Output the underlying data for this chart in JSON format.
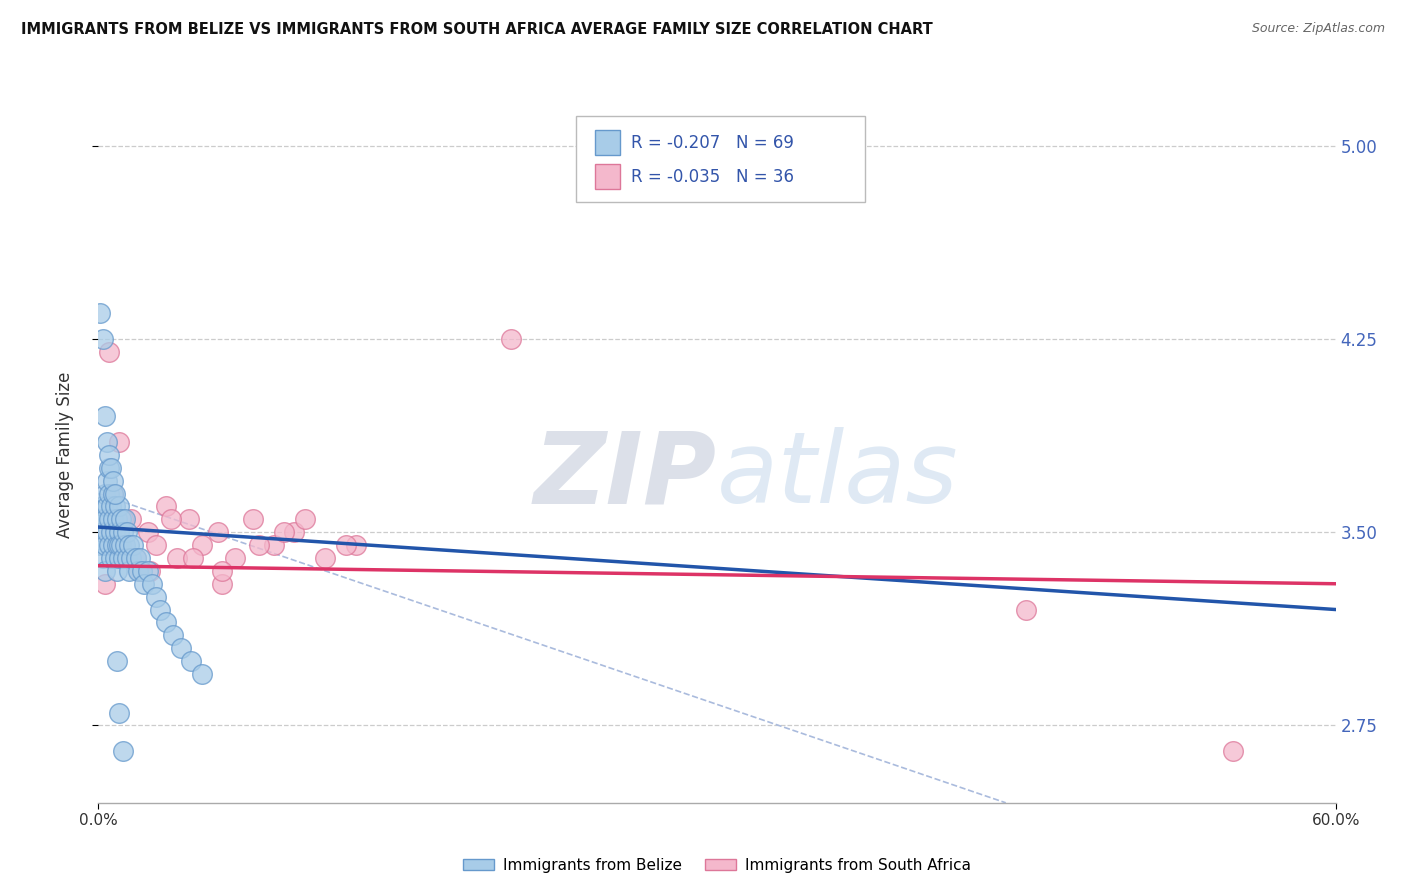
{
  "title": "IMMIGRANTS FROM BELIZE VS IMMIGRANTS FROM SOUTH AFRICA AVERAGE FAMILY SIZE CORRELATION CHART",
  "source_text": "Source: ZipAtlas.com",
  "ylabel": "Average Family Size",
  "xlim": [
    0.0,
    0.6
  ],
  "ylim": [
    2.45,
    5.15
  ],
  "yticks": [
    2.75,
    3.5,
    4.25,
    5.0
  ],
  "xticks": [
    0.0,
    0.6
  ],
  "xtick_labels": [
    "0.0%",
    "60.0%"
  ],
  "belize_color": "#a8cce8",
  "belize_edge": "#6699cc",
  "sa_color": "#f4b8cc",
  "sa_edge": "#dd7799",
  "trend_belize_color": "#2255aa",
  "trend_sa_color": "#dd3366",
  "R_belize": -0.207,
  "N_belize": 69,
  "R_sa": -0.035,
  "N_sa": 36,
  "watermark_zip": "ZIP",
  "watermark_atlas": "atlas",
  "belize_x": [
    0.001,
    0.001,
    0.002,
    0.002,
    0.002,
    0.003,
    0.003,
    0.003,
    0.003,
    0.004,
    0.004,
    0.004,
    0.005,
    0.005,
    0.005,
    0.005,
    0.006,
    0.006,
    0.006,
    0.007,
    0.007,
    0.007,
    0.008,
    0.008,
    0.008,
    0.009,
    0.009,
    0.009,
    0.01,
    0.01,
    0.01,
    0.01,
    0.011,
    0.011,
    0.012,
    0.012,
    0.013,
    0.013,
    0.014,
    0.014,
    0.015,
    0.015,
    0.016,
    0.017,
    0.018,
    0.019,
    0.02,
    0.021,
    0.022,
    0.024,
    0.026,
    0.028,
    0.03,
    0.033,
    0.036,
    0.04,
    0.045,
    0.05,
    0.001,
    0.002,
    0.003,
    0.004,
    0.005,
    0.006,
    0.007,
    0.008,
    0.009,
    0.01,
    0.012
  ],
  "belize_y": [
    3.45,
    3.55,
    3.6,
    3.5,
    3.4,
    3.65,
    3.55,
    3.45,
    3.35,
    3.7,
    3.6,
    3.5,
    3.65,
    3.55,
    3.45,
    3.75,
    3.6,
    3.5,
    3.4,
    3.65,
    3.55,
    3.45,
    3.6,
    3.5,
    3.4,
    3.55,
    3.45,
    3.35,
    3.6,
    3.5,
    3.4,
    3.45,
    3.55,
    3.45,
    3.5,
    3.4,
    3.55,
    3.45,
    3.5,
    3.4,
    3.45,
    3.35,
    3.4,
    3.45,
    3.4,
    3.35,
    3.4,
    3.35,
    3.3,
    3.35,
    3.3,
    3.25,
    3.2,
    3.15,
    3.1,
    3.05,
    3.0,
    2.95,
    4.35,
    4.25,
    3.95,
    3.85,
    3.8,
    3.75,
    3.7,
    3.65,
    3.0,
    2.8,
    2.65
  ],
  "sa_x": [
    0.003,
    0.005,
    0.007,
    0.01,
    0.013,
    0.016,
    0.02,
    0.024,
    0.028,
    0.033,
    0.038,
    0.044,
    0.05,
    0.058,
    0.066,
    0.075,
    0.085,
    0.095,
    0.11,
    0.125,
    0.003,
    0.007,
    0.012,
    0.018,
    0.025,
    0.035,
    0.046,
    0.06,
    0.078,
    0.1,
    0.06,
    0.09,
    0.12,
    0.2,
    0.45,
    0.55
  ],
  "sa_y": [
    3.5,
    4.2,
    3.65,
    3.85,
    3.4,
    3.55,
    3.35,
    3.5,
    3.45,
    3.6,
    3.4,
    3.55,
    3.45,
    3.5,
    3.4,
    3.55,
    3.45,
    3.5,
    3.4,
    3.45,
    3.3,
    3.45,
    3.55,
    3.4,
    3.35,
    3.55,
    3.4,
    3.3,
    3.45,
    3.55,
    3.35,
    3.5,
    3.45,
    4.25,
    3.2,
    2.65
  ],
  "trend_belize_x0": 0.0,
  "trend_belize_x1": 0.6,
  "trend_belize_y0": 3.52,
  "trend_belize_y1": 3.2,
  "trend_sa_y0": 3.37,
  "trend_sa_y1": 3.3,
  "dash_line_x0": 0.0,
  "dash_line_y0": 3.65,
  "dash_line_x1": 0.44,
  "dash_line_y1": 2.45,
  "grid_color": "#cccccc",
  "grid_style": "--",
  "background_color": "#ffffff"
}
